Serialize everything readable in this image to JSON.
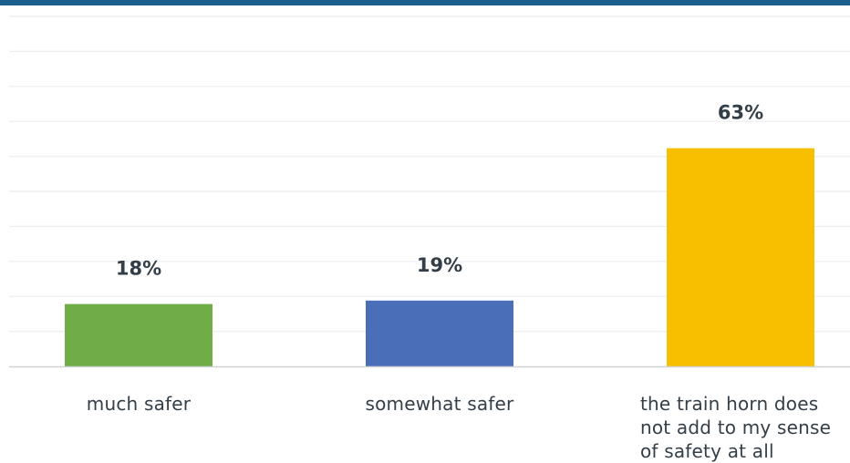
{
  "header": {
    "band_color": "#1a5f8c"
  },
  "chart_data": {
    "type": "bar",
    "categories": [
      "much safer",
      "somewhat safer",
      "the train horn does not add to my sense of safety at all"
    ],
    "values": [
      18,
      19,
      63
    ],
    "value_labels": [
      "18%",
      "19%",
      "63%"
    ],
    "colors": [
      "#70ad47",
      "#4a6fb8",
      "#f8bf00"
    ],
    "title": "",
    "xlabel": "",
    "ylabel": "",
    "ylim": [
      0,
      100
    ],
    "grid": true,
    "legend": "none"
  }
}
